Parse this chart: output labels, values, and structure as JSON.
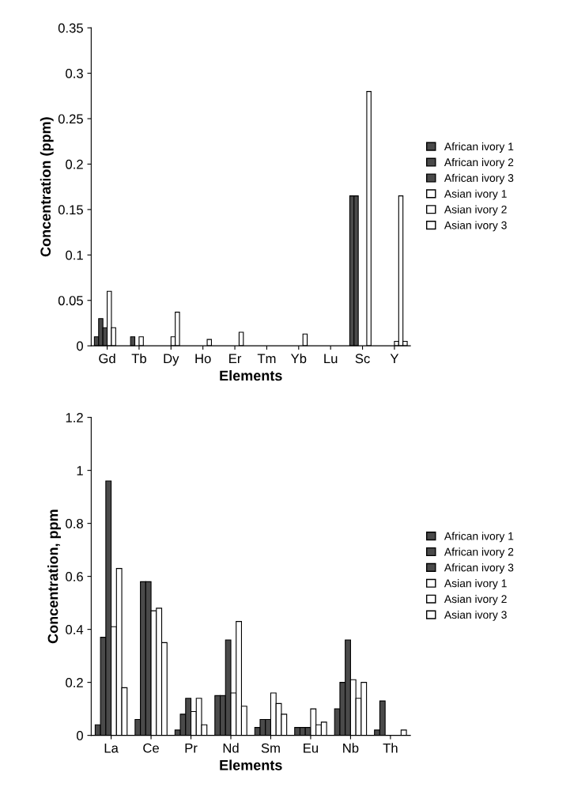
{
  "chart_data": [
    {
      "type": "bar",
      "xlabel": "Elements",
      "ylabel": "Concentration (ppm)",
      "categories": [
        "Gd",
        "Tb",
        "Dy",
        "Ho",
        "Er",
        "Tm",
        "Yb",
        "Lu",
        "Sc",
        "Y"
      ],
      "ylim": [
        0,
        0.35
      ],
      "yticks": [
        0,
        0.05,
        0.1,
        0.15,
        0.2,
        0.25,
        0.3,
        0.35
      ],
      "legend": "right",
      "grid": false,
      "series": [
        {
          "name": "African ivory 1",
          "color": "#4a4a4a",
          "values": [
            0.01,
            null,
            null,
            null,
            null,
            null,
            null,
            null,
            0.165,
            null
          ]
        },
        {
          "name": "African ivory 2",
          "color": "#4a4a4a",
          "values": [
            0.03,
            0.01,
            null,
            null,
            null,
            null,
            null,
            null,
            0.165,
            null
          ]
        },
        {
          "name": "African ivory 3",
          "color": "#4a4a4a",
          "values": [
            0.02,
            null,
            null,
            null,
            null,
            null,
            null,
            null,
            null,
            null
          ]
        },
        {
          "name": "Asian ivory 1",
          "color": "#ffffff",
          "values": [
            0.06,
            0.01,
            0.01,
            null,
            null,
            null,
            null,
            null,
            null,
            0.005
          ]
        },
        {
          "name": "Asian ivory 2",
          "color": "#ffffff",
          "values": [
            0.02,
            null,
            0.037,
            0.007,
            0.015,
            null,
            0.013,
            null,
            0.28,
            0.165
          ]
        },
        {
          "name": "Asian ivory 3",
          "color": "#ffffff",
          "values": [
            null,
            null,
            null,
            null,
            null,
            null,
            null,
            null,
            null,
            0.005
          ]
        }
      ]
    },
    {
      "type": "bar",
      "xlabel": "Elements",
      "ylabel": "Concentration, ppm",
      "categories": [
        "La",
        "Ce",
        "Pr",
        "Nd",
        "Sm",
        "Eu",
        "Nb",
        "Th"
      ],
      "ylim": [
        0,
        1.2
      ],
      "yticks": [
        0,
        0.2,
        0.4,
        0.6,
        0.8,
        1,
        1.2
      ],
      "legend": "right",
      "grid": false,
      "series": [
        {
          "name": "African ivory 1",
          "color": "#4a4a4a",
          "values": [
            0.04,
            0.06,
            0.02,
            0.15,
            0.03,
            0.03,
            0.1,
            0.02
          ]
        },
        {
          "name": "African ivory 2",
          "color": "#4a4a4a",
          "values": [
            0.37,
            0.58,
            0.08,
            0.15,
            0.06,
            0.03,
            0.2,
            0.13
          ]
        },
        {
          "name": "African ivory 3",
          "color": "#4a4a4a",
          "values": [
            0.96,
            0.58,
            0.14,
            0.36,
            0.06,
            0.03,
            0.36,
            null
          ]
        },
        {
          "name": "Asian ivory 1",
          "color": "#ffffff",
          "values": [
            0.41,
            0.47,
            0.09,
            0.16,
            0.16,
            0.1,
            0.21,
            null
          ]
        },
        {
          "name": "Asian ivory 2",
          "color": "#ffffff",
          "values": [
            0.63,
            0.48,
            0.14,
            0.43,
            0.12,
            0.04,
            0.14,
            null
          ]
        },
        {
          "name": "Asian ivory 3",
          "color": "#ffffff",
          "values": [
            0.18,
            0.35,
            0.04,
            0.11,
            0.08,
            0.05,
            0.2,
            0.02
          ]
        }
      ]
    }
  ]
}
